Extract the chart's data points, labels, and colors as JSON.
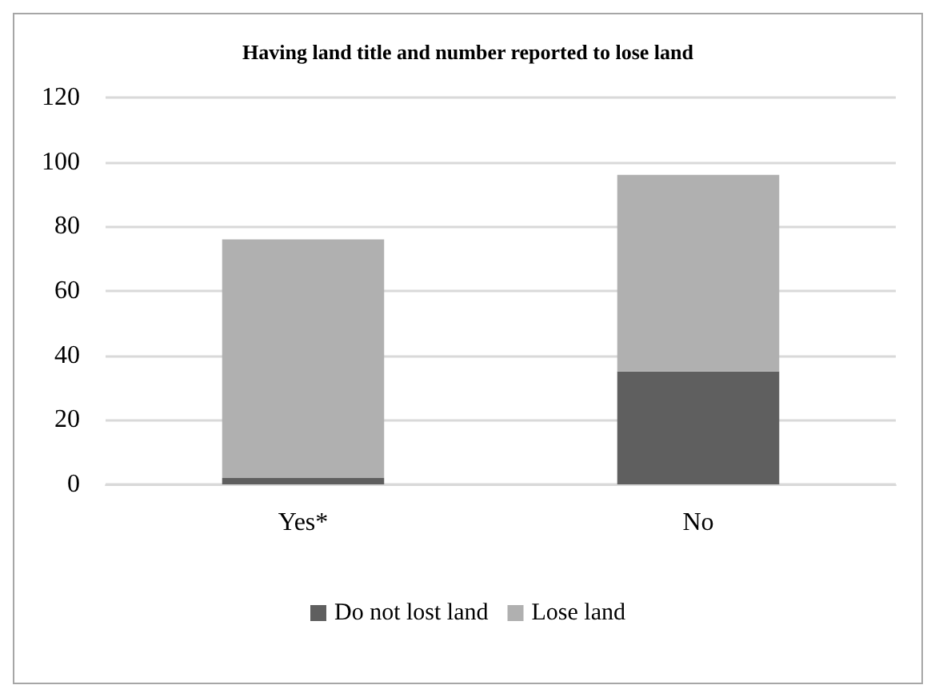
{
  "chart_data": {
    "type": "bar",
    "title": "Having land title and number reported to lose land",
    "categories": [
      "Yes*",
      "No"
    ],
    "stacked": true,
    "series": [
      {
        "name": "Do not lost land",
        "color": "#5f5f5f",
        "values": [
          2,
          35
        ]
      },
      {
        "name": "Lose land",
        "color": "#b0b0b0",
        "values": [
          74,
          61
        ]
      }
    ],
    "ylim": [
      0,
      120
    ],
    "yticks": [
      0,
      20,
      40,
      60,
      80,
      100,
      120
    ],
    "grid": "y",
    "legend": "bottom"
  }
}
